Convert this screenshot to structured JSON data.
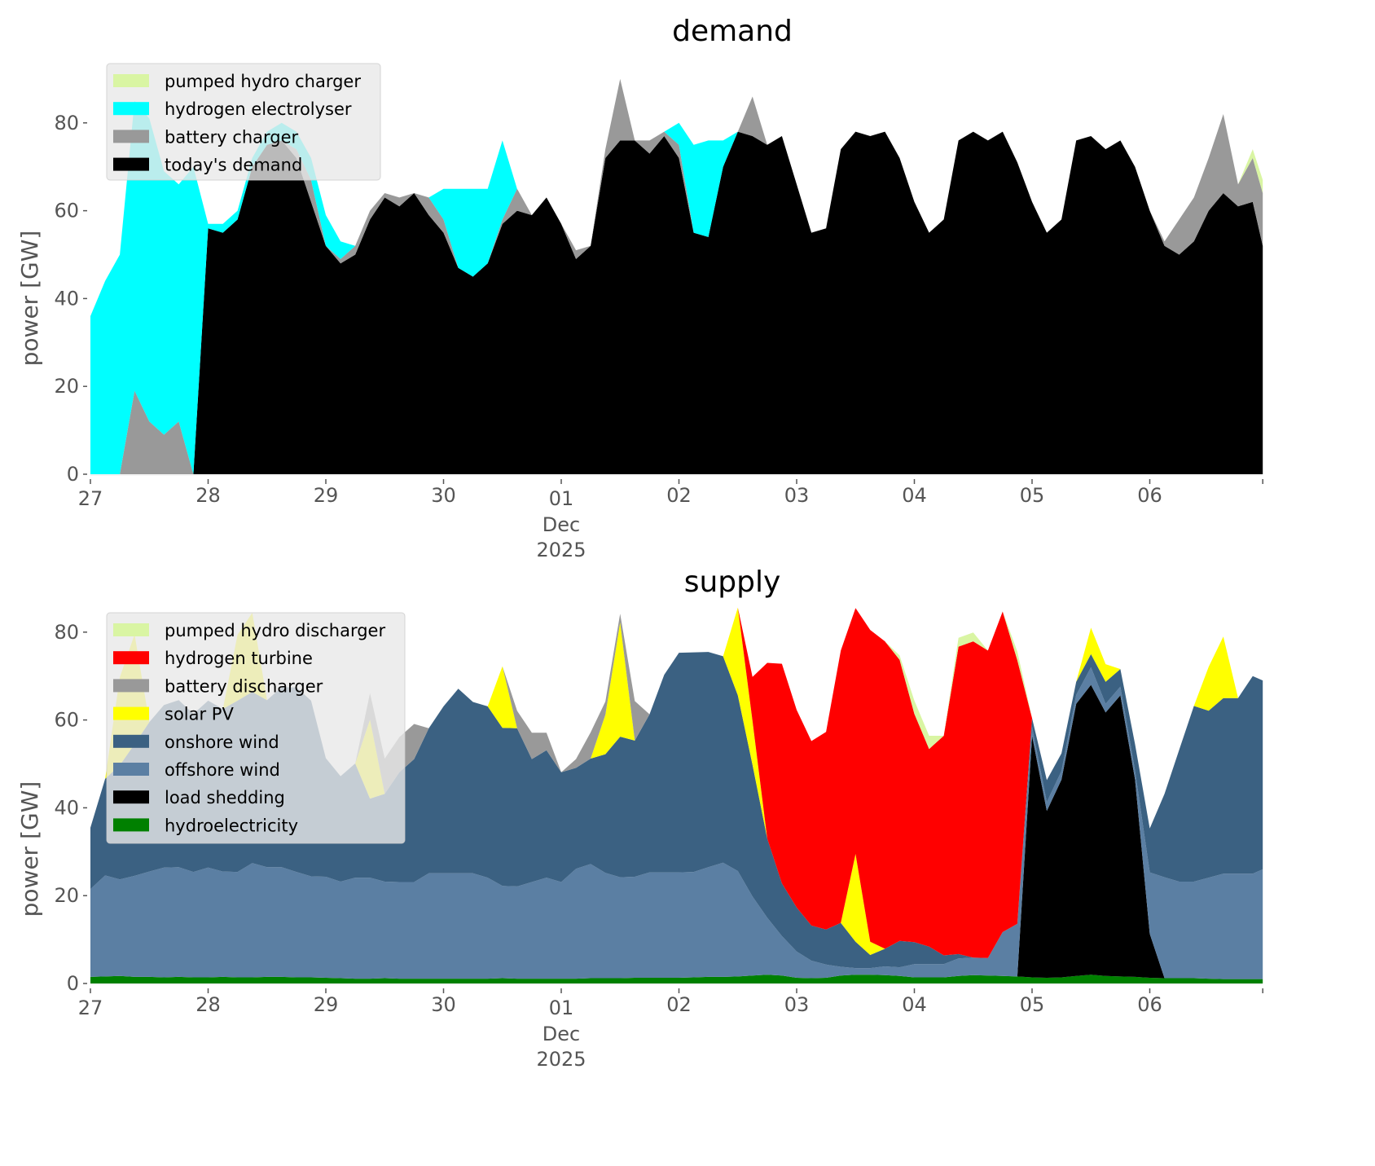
{
  "chart_data": [
    {
      "type": "area",
      "stacked": true,
      "title": "demand",
      "xlabel": "",
      "ylabel": "power [GW]",
      "x_unit": "days since 27 Nov 2025 00:00, 3-hourly samples",
      "xlim": [
        0,
        9.96
      ],
      "ylim": [
        0,
        95
      ],
      "grid": false,
      "legend_position": "top-left",
      "x_ticks": [
        {
          "value": 0,
          "label": "27"
        },
        {
          "value": 1,
          "label": "28"
        },
        {
          "value": 2,
          "label": "29"
        },
        {
          "value": 3,
          "label": "30"
        },
        {
          "value": 4,
          "label": "01",
          "sublabel": "Dec",
          "sublabel2": "2025"
        },
        {
          "value": 5,
          "label": "02"
        },
        {
          "value": 6,
          "label": "03"
        },
        {
          "value": 7,
          "label": "04"
        },
        {
          "value": 8,
          "label": "05"
        },
        {
          "value": 9,
          "label": "06"
        }
      ],
      "y_ticks": [
        0,
        20,
        40,
        60,
        80
      ],
      "series": [
        {
          "name": "today's demand",
          "color": "#000000",
          "values": [
            0,
            0,
            0,
            0,
            0,
            0,
            0,
            0,
            56,
            55,
            58,
            70,
            75,
            76,
            72,
            62,
            52,
            48,
            50,
            58,
            63,
            61,
            64,
            59,
            55,
            47,
            45,
            48,
            57,
            60,
            59,
            63,
            57,
            49,
            52,
            72,
            76,
            76,
            73,
            77,
            72,
            55,
            54,
            70,
            78,
            77,
            75,
            77,
            66,
            55,
            56,
            74,
            78,
            77,
            78,
            72,
            62,
            55,
            58,
            76,
            78,
            76,
            78,
            71,
            62,
            55,
            58,
            76,
            77,
            74,
            76,
            70,
            60,
            52,
            50,
            53,
            60,
            64,
            61,
            62,
            52
          ]
        },
        {
          "name": "battery charger",
          "color": "#999999",
          "values": [
            0,
            0,
            0,
            19,
            12,
            9,
            12,
            0,
            0,
            0,
            0,
            0,
            0,
            0,
            2,
            5,
            0,
            1,
            2,
            2,
            1,
            2,
            0,
            4,
            3,
            0,
            0,
            0,
            1,
            5,
            0,
            0,
            0,
            2,
            0,
            2,
            14,
            0,
            3,
            1,
            3,
            0,
            0,
            0,
            0,
            9,
            0,
            0,
            0,
            0,
            0,
            0,
            0,
            0,
            0,
            0,
            0,
            0,
            0,
            0,
            0,
            0,
            0,
            0,
            0,
            0,
            0,
            0,
            0,
            0,
            0,
            0,
            0,
            1,
            8,
            10,
            12,
            18,
            5,
            10,
            12
          ]
        },
        {
          "name": "hydrogen electrolyser",
          "color": "#00ffff",
          "values": [
            36,
            44,
            50,
            66,
            69,
            60,
            54,
            70,
            1,
            2,
            2,
            2,
            3,
            4,
            4,
            5,
            7,
            4,
            0,
            0,
            0,
            0,
            0,
            0,
            7,
            18,
            20,
            17,
            18,
            0,
            0,
            0,
            0,
            0,
            0,
            0,
            0,
            0,
            0,
            0,
            5,
            20,
            22,
            6,
            0,
            0,
            0,
            0,
            0,
            0,
            0,
            0,
            0,
            0,
            0,
            0,
            0,
            0,
            0,
            0,
            0,
            0,
            0,
            0,
            0,
            0,
            0,
            0,
            0,
            0,
            0,
            0,
            0,
            0,
            0,
            0,
            0,
            0,
            0,
            0,
            0
          ]
        },
        {
          "name": "pumped hydro charger",
          "color": "#d9f5a3",
          "values": [
            0,
            0,
            0,
            0,
            0,
            0,
            0,
            0,
            0,
            0,
            0,
            0,
            0,
            0,
            0,
            0,
            0,
            0,
            0,
            0,
            0,
            0,
            0,
            0,
            0,
            0,
            0,
            0,
            0,
            0,
            0,
            0,
            0,
            0,
            0,
            0,
            0,
            0,
            0,
            0,
            0,
            0,
            0,
            0,
            0,
            0,
            0,
            0,
            0,
            0,
            0,
            0,
            0,
            0,
            0,
            0,
            0,
            0,
            0,
            0,
            0,
            0,
            0,
            0,
            0,
            0,
            0,
            0,
            0,
            0,
            0,
            0,
            0,
            0,
            0,
            0,
            0,
            0,
            0,
            2,
            3
          ]
        }
      ],
      "legend": [
        "pumped hydro charger",
        "hydrogen electrolyser",
        "battery charger",
        "today's demand"
      ]
    },
    {
      "type": "area",
      "stacked": true,
      "title": "supply",
      "xlabel": "",
      "ylabel": "power [GW]",
      "x_unit": "days since 27 Nov 2025 00:00, 3-hourly samples",
      "xlim": [
        0,
        9.96
      ],
      "ylim": [
        0,
        95
      ],
      "grid": false,
      "legend_position": "top-left",
      "x_ticks": [
        {
          "value": 0,
          "label": "27"
        },
        {
          "value": 1,
          "label": "28"
        },
        {
          "value": 2,
          "label": "29"
        },
        {
          "value": 3,
          "label": "30"
        },
        {
          "value": 4,
          "label": "01",
          "sublabel": "Dec",
          "sublabel2": "2025"
        },
        {
          "value": 5,
          "label": "02"
        },
        {
          "value": 6,
          "label": "03"
        },
        {
          "value": 7,
          "label": "04"
        },
        {
          "value": 8,
          "label": "05"
        },
        {
          "value": 9,
          "label": "06"
        }
      ],
      "y_ticks": [
        0,
        20,
        40,
        60,
        80
      ],
      "series": [
        {
          "name": "hydroelectricity",
          "color": "#008000",
          "values": [
            1.5,
            1.6,
            1.7,
            1.5,
            1.5,
            1.4,
            1.5,
            1.4,
            1.4,
            1.5,
            1.4,
            1.4,
            1.5,
            1.5,
            1.4,
            1.4,
            1.3,
            1.2,
            1.1,
            1.1,
            1.2,
            1.1,
            1.1,
            1.1,
            1.1,
            1.1,
            1.1,
            1.1,
            1.2,
            1.1,
            1.1,
            1.1,
            1.1,
            1.1,
            1.2,
            1.2,
            1.2,
            1.3,
            1.3,
            1.3,
            1.3,
            1.4,
            1.5,
            1.5,
            1.6,
            1.8,
            2.0,
            1.8,
            1.3,
            1.2,
            1.3,
            1.8,
            2.0,
            2.0,
            1.9,
            1.7,
            1.4,
            1.4,
            1.4,
            1.7,
            1.9,
            1.8,
            1.7,
            1.6,
            1.4,
            1.3,
            1.4,
            1.7,
            2.0,
            1.7,
            1.6,
            1.5,
            1.3,
            1.2,
            1.2,
            1.2,
            1.1,
            1.0,
            1.0,
            1.0,
            1.0
          ]
        },
        {
          "name": "load shedding",
          "color": "#000000",
          "values": [
            0,
            0,
            0,
            0,
            0,
            0,
            0,
            0,
            0,
            0,
            0,
            0,
            0,
            0,
            0,
            0,
            0,
            0,
            0,
            0,
            0,
            0,
            0,
            0,
            0,
            0,
            0,
            0,
            0,
            0,
            0,
            0,
            0,
            0,
            0,
            0,
            0,
            0,
            0,
            0,
            0,
            0,
            0,
            0,
            0,
            0,
            0,
            0,
            0,
            0,
            0,
            0,
            0,
            0,
            0,
            0,
            0,
            0,
            0,
            0,
            0,
            0,
            0,
            0,
            55,
            38,
            45,
            62,
            66,
            60,
            64,
            45,
            10,
            0,
            0,
            0,
            0,
            0,
            0,
            0,
            0
          ]
        },
        {
          "name": "offshore wind",
          "color": "#5b7fa3",
          "values": [
            20,
            23,
            22,
            23,
            24,
            25,
            25,
            24,
            25,
            24,
            24,
            26,
            25,
            25,
            24,
            23,
            23,
            22,
            23,
            23,
            22,
            22,
            22,
            24,
            24,
            24,
            24,
            23,
            21,
            21,
            22,
            23,
            22,
            25,
            26,
            24,
            23,
            23,
            24,
            24,
            24,
            24,
            25,
            26,
            24,
            18,
            13,
            9,
            6,
            4,
            3,
            2,
            1.5,
            1.5,
            2,
            2,
            3,
            3,
            3,
            4,
            4,
            4,
            10,
            12,
            2,
            2,
            2,
            2,
            4,
            2,
            2,
            2,
            14,
            23,
            22,
            22,
            23,
            24,
            24,
            24,
            25
          ]
        },
        {
          "name": "onshore wind",
          "color": "#3b6182",
          "values": [
            14,
            22,
            26,
            30,
            34,
            37,
            38,
            36,
            38,
            37,
            39,
            39,
            38,
            41,
            42,
            40,
            27,
            24,
            26,
            18,
            20,
            25,
            28,
            33,
            38,
            42,
            39,
            39,
            36,
            36,
            28,
            29,
            25,
            23,
            24,
            27,
            32,
            31,
            36,
            45,
            50,
            50,
            49,
            47,
            40,
            30,
            18,
            12,
            10,
            8,
            8,
            10,
            6,
            3,
            4,
            6,
            5,
            4,
            2,
            1,
            0,
            0,
            0,
            0,
            2,
            5,
            4,
            3,
            3,
            5,
            4,
            6,
            10,
            19,
            30,
            40,
            38,
            40,
            40,
            45,
            43
          ]
        },
        {
          "name": "solar PV",
          "color": "#ffff00",
          "values": [
            0,
            0,
            20,
            25,
            0,
            0,
            0,
            0,
            0,
            0,
            15,
            18,
            0,
            0,
            0,
            0,
            0,
            0,
            0,
            18,
            0,
            0,
            0,
            0,
            0,
            0,
            0,
            0,
            14,
            0,
            0,
            0,
            0,
            0,
            0,
            9,
            26,
            0,
            0,
            0,
            0,
            0,
            0,
            0,
            20,
            10,
            0,
            0,
            0,
            0,
            0,
            0,
            20,
            3,
            0,
            0,
            0,
            0,
            0,
            0,
            0,
            0,
            0,
            0,
            0,
            0,
            0,
            0,
            6,
            4,
            0,
            0,
            0,
            0,
            0,
            0,
            10,
            14,
            0,
            0,
            0
          ]
        },
        {
          "name": "battery discharger",
          "color": "#999999",
          "values": [
            0,
            0,
            0,
            0,
            0,
            0,
            0,
            0,
            0,
            0,
            0,
            0,
            0,
            0,
            0,
            0,
            0,
            0,
            0,
            6,
            8,
            8,
            8,
            0,
            0,
            0,
            0,
            0,
            0,
            4,
            6,
            4,
            0,
            2,
            6,
            3,
            2,
            9,
            0,
            0,
            0,
            0,
            0,
            0,
            0,
            0,
            0,
            0,
            0,
            0,
            0,
            0,
            0,
            0,
            0,
            0,
            0,
            0,
            0,
            0,
            0,
            0,
            0,
            0,
            0,
            0,
            0,
            0,
            0,
            0,
            0,
            0,
            0,
            0,
            0,
            0,
            0,
            0,
            0,
            0,
            0
          ]
        },
        {
          "name": "hydrogen turbine",
          "color": "#ff0000",
          "values": [
            0,
            0,
            0,
            0,
            0,
            0,
            0,
            0,
            0,
            0,
            0,
            0,
            0,
            0,
            0,
            0,
            0,
            0,
            0,
            0,
            0,
            0,
            0,
            0,
            0,
            0,
            0,
            0,
            0,
            0,
            0,
            0,
            0,
            0,
            0,
            0,
            0,
            0,
            0,
            0,
            0,
            0,
            0,
            0,
            0,
            10,
            40,
            50,
            45,
            42,
            45,
            62,
            56,
            71,
            70,
            64,
            52,
            45,
            50,
            70,
            72,
            70,
            73,
            60,
            0,
            0,
            0,
            0,
            0,
            0,
            0,
            0,
            0,
            0,
            0,
            0,
            0,
            0,
            0,
            0,
            0
          ]
        },
        {
          "name": "pumped hydro discharger",
          "color": "#d9f5a3",
          "values": [
            0,
            0,
            0,
            0,
            0,
            0,
            0,
            0,
            0,
            0,
            0,
            0,
            0,
            0,
            0,
            0,
            0,
            0,
            0,
            0,
            0,
            0,
            0,
            0,
            0,
            0,
            0,
            0,
            0,
            0,
            0,
            0,
            0,
            0,
            0,
            0,
            0,
            0,
            0,
            0,
            0,
            0,
            0,
            0,
            0,
            0,
            0,
            0,
            0,
            0,
            0,
            0,
            0,
            0,
            0,
            1,
            3,
            3,
            0,
            2,
            2,
            0,
            0,
            2,
            0,
            0,
            0,
            0,
            0,
            0,
            0,
            0,
            0,
            0,
            0,
            0,
            0,
            0,
            0,
            0,
            0
          ]
        }
      ],
      "legend": [
        "pumped hydro discharger",
        "hydrogen turbine",
        "battery discharger",
        "solar PV",
        "onshore wind",
        "offshore wind",
        "load shedding",
        "hydroelectricity"
      ]
    }
  ]
}
